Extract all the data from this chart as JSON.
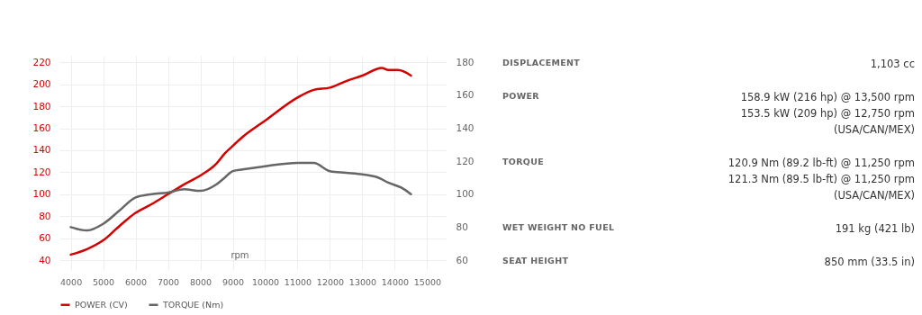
{
  "chart_data": [
    {
      "type": "line",
      "xlabel": "rpm",
      "x": [
        4000,
        4500,
        5000,
        5500,
        6000,
        6500,
        7000,
        7500,
        8000,
        8500,
        8750,
        9000,
        9300,
        10000,
        11000,
        11500,
        12000,
        12500,
        13000,
        13500,
        13800,
        14200,
        14500
      ],
      "series": [
        {
          "name": "POWER (CV)",
          "color": "#d40000",
          "x": [
            4000,
            4500,
            5000,
            5500,
            6000,
            6500,
            7000,
            7500,
            8000,
            8500,
            8750,
            9000,
            9300,
            10000,
            11000,
            11500,
            12000,
            12500,
            13000,
            13600,
            13800,
            14100,
            14500
          ],
          "values": [
            45,
            50,
            58,
            71,
            83,
            91,
            100,
            109,
            117,
            128,
            137,
            144,
            152,
            167,
            188,
            195,
            197,
            203,
            208,
            215,
            213,
            213,
            208
          ]
        },
        {
          "name": "TORQUE (Nm)",
          "color": "#666666",
          "axis": "y2",
          "values": [
            80,
            78,
            82,
            90,
            98,
            100,
            101,
            103,
            102,
            106,
            110,
            114,
            115,
            117,
            119,
            119,
            114,
            113,
            112,
            110,
            107,
            104,
            100
          ]
        }
      ],
      "xlim": [
        3650,
        15600
      ],
      "xticks": [
        4000,
        5000,
        6000,
        7000,
        8000,
        9000,
        10000,
        11000,
        12000,
        13000,
        14000,
        15000
      ],
      "ylim": [
        31,
        226
      ],
      "yticks": [
        40,
        60,
        80,
        100,
        120,
        140,
        160,
        180,
        200,
        220
      ],
      "y2lim": [
        54,
        184
      ],
      "y2ticks": [
        60,
        80,
        100,
        120,
        140,
        160,
        180
      ],
      "grid": true,
      "legend": "bottom"
    },
    {
      "type": "other",
      "categories": [
        "DISPLACEMENT",
        "POWER",
        "TORQUE",
        "WET WEIGHT NO FUEL",
        "SEAT HEIGHT"
      ],
      "value_labels": [
        [
          "1,103 cc"
        ],
        [
          "158.9 kW (216 hp) @ 13,500 rpm",
          "153.5 kW (209 hp) @ 12,750 rpm",
          "(USA/CAN/MEX)"
        ],
        [
          "120.9 Nm (89.2 lb-ft) @ 11,250 rpm",
          "121.3 Nm (89.5 lb-ft) @ 11,250 rpm",
          "(USA/CAN/MEX)"
        ],
        [
          "191 kg (421 lb)"
        ],
        [
          "850 mm (33.5 in)"
        ]
      ]
    }
  ]
}
